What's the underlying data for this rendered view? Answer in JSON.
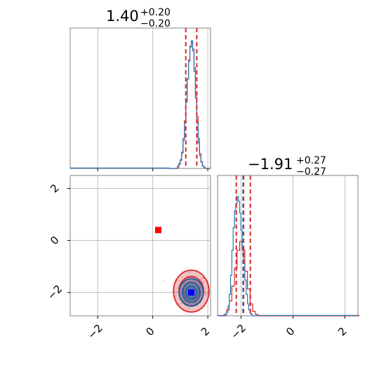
{
  "chart_data": {
    "type": "corner",
    "parameters": [
      {
        "title_main": "1.40",
        "title_plus": "+0.20",
        "title_minus": "−0.20",
        "range": [
          -3,
          2.1
        ],
        "ticks": [
          -2,
          0,
          2
        ],
        "tick_labels": [
          "−2",
          "0",
          "2"
        ],
        "quantiles": [
          1.2,
          1.6
        ],
        "blue_hist": {
          "bin_edges_start": 0.6,
          "bin_width": 0.05,
          "counts": [
            0,
            0,
            0,
            0,
            0,
            0,
            2,
            4,
            7,
            12,
            22,
            36,
            52,
            70,
            84,
            95,
            100,
            92,
            76,
            55,
            36,
            20,
            10,
            5,
            2,
            1,
            0,
            0,
            0,
            0
          ]
        },
        "red_hist": {
          "bin_edges_start": 0.6,
          "bin_width": 0.05,
          "counts": [
            0,
            0,
            0,
            0,
            0,
            0,
            1,
            3,
            6,
            12,
            22,
            35,
            50,
            66,
            80,
            90,
            93,
            88,
            74,
            55,
            38,
            22,
            11,
            5,
            2,
            1,
            0,
            0,
            0,
            0
          ]
        }
      },
      {
        "title_main": "−1.91",
        "title_plus": "+0.27",
        "title_minus": "−0.27",
        "range": [
          -2.9,
          2.5
        ],
        "ticks": [
          -2,
          0,
          2
        ],
        "tick_labels": [
          "−2",
          "0",
          "2"
        ],
        "quantiles": [
          -2.18,
          -1.9,
          -1.64
        ],
        "blue_quantile": -1.92,
        "blue_hist": {
          "bin_edges_start": -2.7,
          "bin_width": 0.05,
          "counts": [
            0,
            0,
            1,
            3,
            8,
            18,
            34,
            55,
            74,
            88,
            94,
            100,
            96,
            86,
            72,
            58,
            44,
            30,
            18,
            10,
            5,
            2,
            1,
            0,
            0,
            0
          ]
        },
        "red_hist": {
          "bin_edges_start": -2.75,
          "bin_width": 0.1,
          "counts": [
            0,
            1,
            4,
            10,
            20,
            32,
            44,
            50,
            44,
            30,
            18,
            8,
            3,
            1,
            0,
            0,
            0,
            0,
            0,
            0,
            0,
            0,
            0,
            0,
            0,
            0,
            0,
            0,
            0,
            0,
            0,
            0,
            0,
            0,
            0,
            0,
            0,
            0,
            0,
            0,
            0,
            0,
            0,
            0,
            0,
            0,
            0,
            0,
            0,
            0,
            0,
            0,
            0
          ]
        }
      }
    ],
    "truth_marker": {
      "x": 0.2,
      "y": 0.4,
      "color": "#ff0000"
    },
    "blue_marker": {
      "x": 1.4,
      "y": -2.0,
      "color": "#0000ff"
    },
    "contours_red": {
      "cx": 1.4,
      "cy": -1.95,
      "sx": 0.28,
      "sy": 0.35,
      "levels": [
        1.0,
        1.6,
        2.3
      ]
    },
    "contours_blue": {
      "cx": 1.4,
      "cy": -2.0,
      "sx": 0.2,
      "sy": 0.24,
      "levels": [
        1.0,
        1.6,
        2.2
      ]
    },
    "colors": {
      "blue": "#1f77b4",
      "red": "#d62728",
      "grid": "#b0b0b0"
    }
  }
}
